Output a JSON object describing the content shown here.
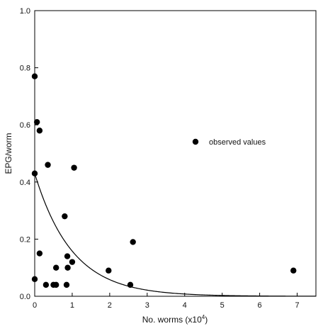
{
  "chart_data": {
    "type": "scatter",
    "title": "",
    "xlabel": "No. worms (x10",
    "xlabel_sup": "4",
    "xlabel_close": ")",
    "ylabel": "EPG/worm",
    "xlim": [
      0,
      7.5
    ],
    "ylim": [
      0,
      1.0
    ],
    "x_ticks": [
      0,
      1,
      2,
      3,
      4,
      5,
      6,
      7
    ],
    "y_ticks": [
      0.0,
      0.2,
      0.4,
      0.6,
      0.8,
      1.0
    ],
    "x_tick_labels": [
      "0",
      "1",
      "2",
      "3",
      "4",
      "5",
      "6",
      "7"
    ],
    "y_tick_labels": [
      "0.0",
      "0.2",
      "0.4",
      "0.6",
      "0.8",
      "1.0"
    ],
    "grid": false,
    "legend_position": "upper-right",
    "series": [
      {
        "name": "observed values",
        "marker": "filled-circle",
        "color": "#000000",
        "points": [
          {
            "x": 0.0,
            "y": 0.77
          },
          {
            "x": 0.06,
            "y": 0.61
          },
          {
            "x": 0.13,
            "y": 0.58
          },
          {
            "x": 0.0,
            "y": 0.43
          },
          {
            "x": 0.35,
            "y": 0.46
          },
          {
            "x": 1.05,
            "y": 0.45
          },
          {
            "x": 0.8,
            "y": 0.28
          },
          {
            "x": 0.0,
            "y": 0.06
          },
          {
            "x": 0.13,
            "y": 0.15
          },
          {
            "x": 0.3,
            "y": 0.04
          },
          {
            "x": 0.5,
            "y": 0.04
          },
          {
            "x": 0.57,
            "y": 0.04
          },
          {
            "x": 0.57,
            "y": 0.1
          },
          {
            "x": 0.85,
            "y": 0.04
          },
          {
            "x": 0.87,
            "y": 0.14
          },
          {
            "x": 0.88,
            "y": 0.1
          },
          {
            "x": 1.0,
            "y": 0.12
          },
          {
            "x": 1.97,
            "y": 0.09
          },
          {
            "x": 2.55,
            "y": 0.04
          },
          {
            "x": 2.62,
            "y": 0.19
          },
          {
            "x": 6.9,
            "y": 0.09
          }
        ]
      }
    ],
    "fitted_curve": {
      "equation": "y = 0.43 * exp(-1.0 * x)",
      "a": 0.43,
      "b": 1.0,
      "x_range": [
        0,
        7.5
      ]
    }
  }
}
